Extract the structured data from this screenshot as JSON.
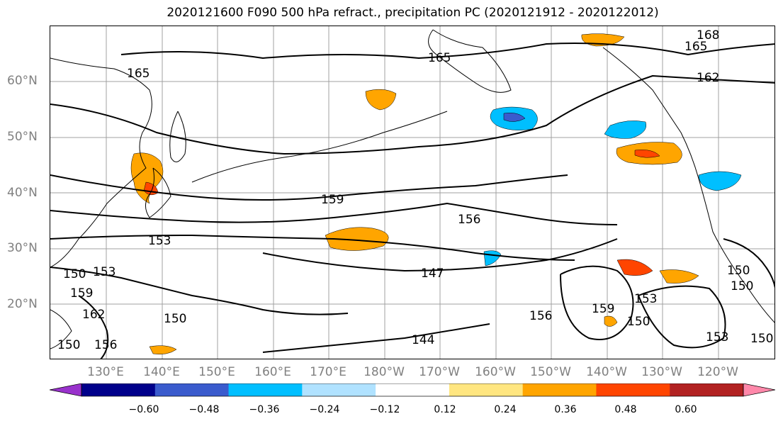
{
  "title": "2020121600 F090 500 hPa refract., precipitation PC (2020121912 - 2020122012)",
  "lat_labels": [
    "60°N",
    "50°N",
    "40°N",
    "30°N",
    "20°N"
  ],
  "lon_labels": [
    "130°E",
    "140°E",
    "150°E",
    "160°E",
    "170°E",
    "180°W",
    "170°W",
    "160°W",
    "150°W",
    "140°W",
    "130°W",
    "120°W"
  ],
  "contour_labels": [
    "168",
    "165",
    "165",
    "165",
    "162",
    "159",
    "156",
    "153",
    "153",
    "150",
    "150",
    "159",
    "162",
    "156",
    "150",
    "147",
    "144",
    "156",
    "159",
    "153",
    "150",
    "153",
    "150",
    "150",
    "150"
  ],
  "colorbar": {
    "tick_labels": [
      "−0.60",
      "−0.48",
      "−0.36",
      "−0.24",
      "−0.12",
      "0.12",
      "0.24",
      "0.36",
      "0.48",
      "0.60"
    ],
    "colors": [
      "#9932cc",
      "#00008b",
      "#3a5bcd",
      "#00bfff",
      "#b0e2ff",
      "#ffffff",
      "#ffe680",
      "#ffa500",
      "#ff4500",
      "#b22222",
      "#ff88aa"
    ]
  },
  "colors": {
    "contour": "#000000",
    "coast": "#000000",
    "grid": "#a0a0a0",
    "axis_label": "#808080"
  }
}
